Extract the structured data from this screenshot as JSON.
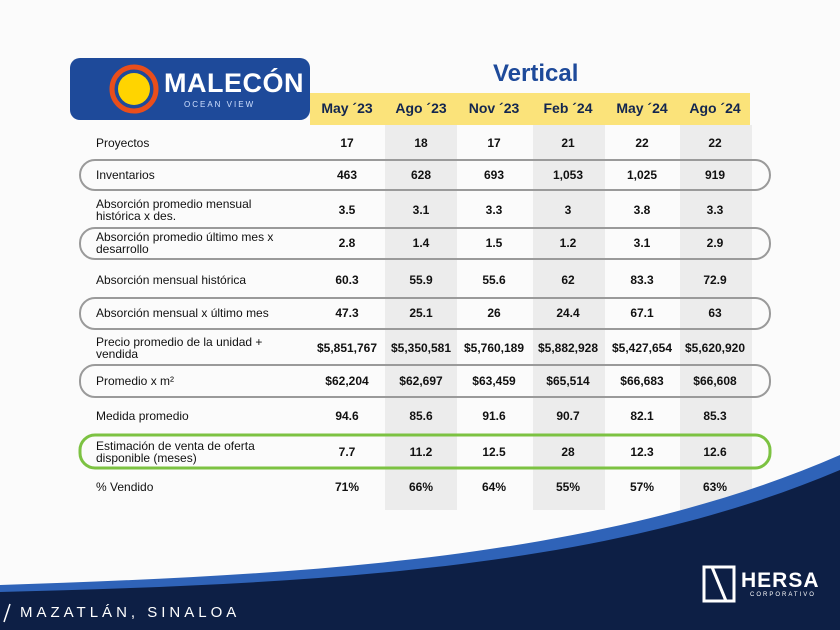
{
  "header": {
    "brand": "MALECÓN",
    "brand_sub": "OCEAN VIEW",
    "title": "Vertical"
  },
  "table": {
    "columns": [
      "May ´23",
      "Ago ´23",
      "Nov ´23",
      "Feb ´24",
      "May ´24",
      "Ago ´24"
    ],
    "rows": [
      {
        "label": "Proyectos",
        "cells": [
          "17",
          "18",
          "17",
          "21",
          "22",
          "22"
        ]
      },
      {
        "label": "Inventarios",
        "cells": [
          "463",
          "628",
          "693",
          "1,053",
          "1,025",
          "919"
        ]
      },
      {
        "label": "Absorción promedio mensual histórica x des.",
        "cells": [
          "3.5",
          "3.1",
          "3.3",
          "3",
          "3.8",
          "3.3"
        ]
      },
      {
        "label": "Absorción promedio último mes x desarrollo",
        "cells": [
          "2.8",
          "1.4",
          "1.5",
          "1.2",
          "3.1",
          "2.9"
        ]
      },
      {
        "label": "Absorción mensual histórica",
        "cells": [
          "60.3",
          "55.9",
          "55.6",
          "62",
          "83.3",
          "72.9"
        ]
      },
      {
        "label": "Absorción mensual x último mes",
        "cells": [
          "47.3",
          "25.1",
          "26",
          "24.4",
          "67.1",
          "63"
        ]
      },
      {
        "label": "Precio promedio de la unidad + vendida",
        "cells": [
          "$5,851,767",
          "$5,350,581",
          "$5,760,189",
          "$5,882,928",
          "$5,427,654",
          "$5,620,920"
        ]
      },
      {
        "label": "Promedio x m²",
        "cells": [
          "$62,204",
          "$62,697",
          "$63,459",
          "$65,514",
          "$66,683",
          "$66,608"
        ]
      },
      {
        "label": "Medida promedio",
        "cells": [
          "94.6",
          "85.6",
          "91.6",
          "90.7",
          "82.1",
          "85.3"
        ]
      },
      {
        "label": "Estimación de venta de oferta disponible (meses)",
        "cells": [
          "7.7",
          "11.2",
          "12.5",
          "28",
          "12.3",
          "12.6"
        ]
      },
      {
        "label": "% Vendido",
        "cells": [
          "71%",
          "66%",
          "64%",
          "55%",
          "57%",
          "63%"
        ]
      }
    ]
  },
  "footer": {
    "location": "MAZATLÁN, SINALOA",
    "company": "HERSA",
    "company_sub": "CORPORATIVO"
  }
}
